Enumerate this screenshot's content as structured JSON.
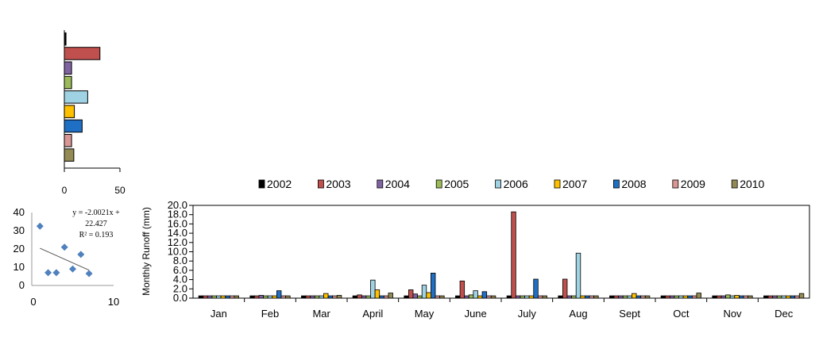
{
  "colors": {
    "2002": "#000000",
    "2003": "#c0504d",
    "2004": "#8064a2",
    "2005": "#9bbb59",
    "2006": "#9fd3e3",
    "2007": "#ffc000",
    "2008": "#1f6fc5",
    "2009": "#d99694",
    "2010": "#948a54",
    "scatter": "#4f81bd"
  },
  "chart_data": [
    {
      "type": "bar",
      "orientation": "horizontal",
      "categories": [
        "2002",
        "2003",
        "2004",
        "2005",
        "2006",
        "2007",
        "2008",
        "2009",
        "2010"
      ],
      "values": [
        1.5,
        32,
        6.5,
        6.5,
        21,
        9,
        16,
        6.5,
        8.5
      ],
      "xlim": [
        0,
        50
      ],
      "x_ticks": [
        "0",
        "50"
      ]
    },
    {
      "type": "scatter",
      "points": [
        [
          1,
          32.5
        ],
        [
          2,
          7
        ],
        [
          3,
          7
        ],
        [
          4,
          21
        ],
        [
          5,
          9
        ],
        [
          6,
          17
        ],
        [
          7,
          6.5
        ]
      ],
      "trendline": {
        "slope": -2.0021,
        "intercept": 22.427
      },
      "equation_lines": [
        "y = -2.0021x +",
        "22.427",
        "R² = 0.193"
      ],
      "xlim": [
        0,
        10
      ],
      "ylim": [
        0,
        40
      ],
      "x_ticks": [
        "0",
        "10"
      ],
      "y_ticks": [
        "0",
        "10",
        "20",
        "30",
        "40"
      ]
    },
    {
      "type": "bar",
      "ylabel": "Monthly  Runoff (mm)",
      "ylim": [
        0,
        20
      ],
      "y_ticks": [
        "0.0",
        "2.0",
        "4.0",
        "6.0",
        "8.0",
        "10.0",
        "12.0",
        "14.0",
        "16.0",
        "18.0",
        "20.0"
      ],
      "categories": [
        "Jan",
        "Feb",
        "Mar",
        "April",
        "May",
        "June",
        "July",
        "Aug",
        "Sept",
        "Oct",
        "Nov",
        "Dec"
      ],
      "legend_position": "top",
      "series": [
        {
          "name": "2002",
          "values": [
            0.5,
            0.5,
            0.5,
            0.5,
            0.5,
            0.5,
            0.5,
            0.5,
            0.5,
            0.5,
            0.5,
            0.5
          ]
        },
        {
          "name": "2003",
          "values": [
            0.5,
            0.5,
            0.5,
            0.7,
            1.8,
            3.7,
            18.6,
            4.1,
            0.5,
            0.5,
            0.5,
            0.5
          ]
        },
        {
          "name": "2004",
          "values": [
            0.5,
            0.6,
            0.5,
            0.5,
            0.9,
            0.5,
            0.5,
            0.5,
            0.5,
            0.5,
            0.5,
            0.5
          ]
        },
        {
          "name": "2005",
          "values": [
            0.5,
            0.5,
            0.5,
            0.5,
            0.5,
            0.7,
            0.5,
            0.5,
            0.5,
            0.5,
            0.7,
            0.5
          ]
        },
        {
          "name": "2006",
          "values": [
            0.5,
            0.5,
            0.5,
            3.9,
            2.8,
            1.6,
            0.5,
            9.7,
            0.5,
            0.5,
            0.5,
            0.5
          ]
        },
        {
          "name": "2007",
          "values": [
            0.5,
            0.5,
            1.0,
            1.8,
            1.2,
            0.5,
            0.5,
            0.5,
            1.0,
            0.5,
            0.6,
            0.5
          ]
        },
        {
          "name": "2008",
          "values": [
            0.5,
            1.6,
            0.5,
            0.5,
            5.4,
            1.4,
            4.1,
            0.5,
            0.5,
            0.5,
            0.5,
            0.5
          ]
        },
        {
          "name": "2009",
          "values": [
            0.5,
            0.5,
            0.5,
            0.5,
            0.5,
            0.5,
            0.5,
            0.5,
            0.5,
            0.5,
            0.5,
            0.5
          ]
        },
        {
          "name": "2010",
          "values": [
            0.5,
            0.5,
            0.6,
            1.1,
            0.5,
            0.5,
            0.5,
            0.5,
            0.5,
            1.1,
            0.5,
            1.0
          ]
        }
      ]
    }
  ]
}
